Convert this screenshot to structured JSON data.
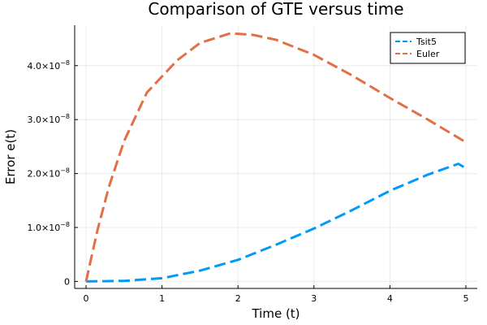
{
  "chart_data": {
    "type": "line",
    "title": "Comparison of GTE versus time",
    "xlabel": "Time (t)",
    "ylabel": "Error e(t)",
    "xlim": [
      -0.15,
      5.15
    ],
    "ylim": [
      -1.3e-09,
      4.75e-08
    ],
    "xticks": [
      0,
      1,
      2,
      3,
      4,
      5
    ],
    "yticks": [
      {
        "value": 0,
        "label": "0",
        "exp": ""
      },
      {
        "value": 1e-08,
        "label": "1.0×10",
        "exp": "−8"
      },
      {
        "value": 2e-08,
        "label": "2.0×10",
        "exp": "−8"
      },
      {
        "value": 3e-08,
        "label": "3.0×10",
        "exp": "−8"
      },
      {
        "value": 4e-08,
        "label": "4.0×10",
        "exp": "−8"
      }
    ],
    "grid": true,
    "legend_position": "top-right",
    "series": [
      {
        "name": "Tsit5",
        "color": "#009AFA",
        "dash": "dashed",
        "x": [
          0,
          0.5,
          1,
          1.5,
          2,
          2.5,
          3,
          3.5,
          4,
          4.5,
          4.9,
          5
        ],
        "y": [
          0,
          1e-10,
          6e-10,
          2e-09,
          4e-09,
          6.8e-09,
          9.8e-09,
          1.32e-08,
          1.68e-08,
          1.98e-08,
          2.18e-08,
          2.1e-08
        ]
      },
      {
        "name": "Euler",
        "color": "#E26F46",
        "dash": "dashed",
        "x": [
          0,
          0.15,
          0.3,
          0.5,
          0.8,
          1.2,
          1.5,
          1.9,
          2.2,
          2.5,
          3.0,
          3.5,
          4.0,
          4.5,
          5.0
        ],
        "y": [
          0,
          9.5e-09,
          1.75e-08,
          2.6e-08,
          3.5e-08,
          4.1e-08,
          4.42e-08,
          4.6e-08,
          4.57e-08,
          4.48e-08,
          4.2e-08,
          3.82e-08,
          3.4e-08,
          3e-08,
          2.58e-08
        ]
      }
    ]
  }
}
